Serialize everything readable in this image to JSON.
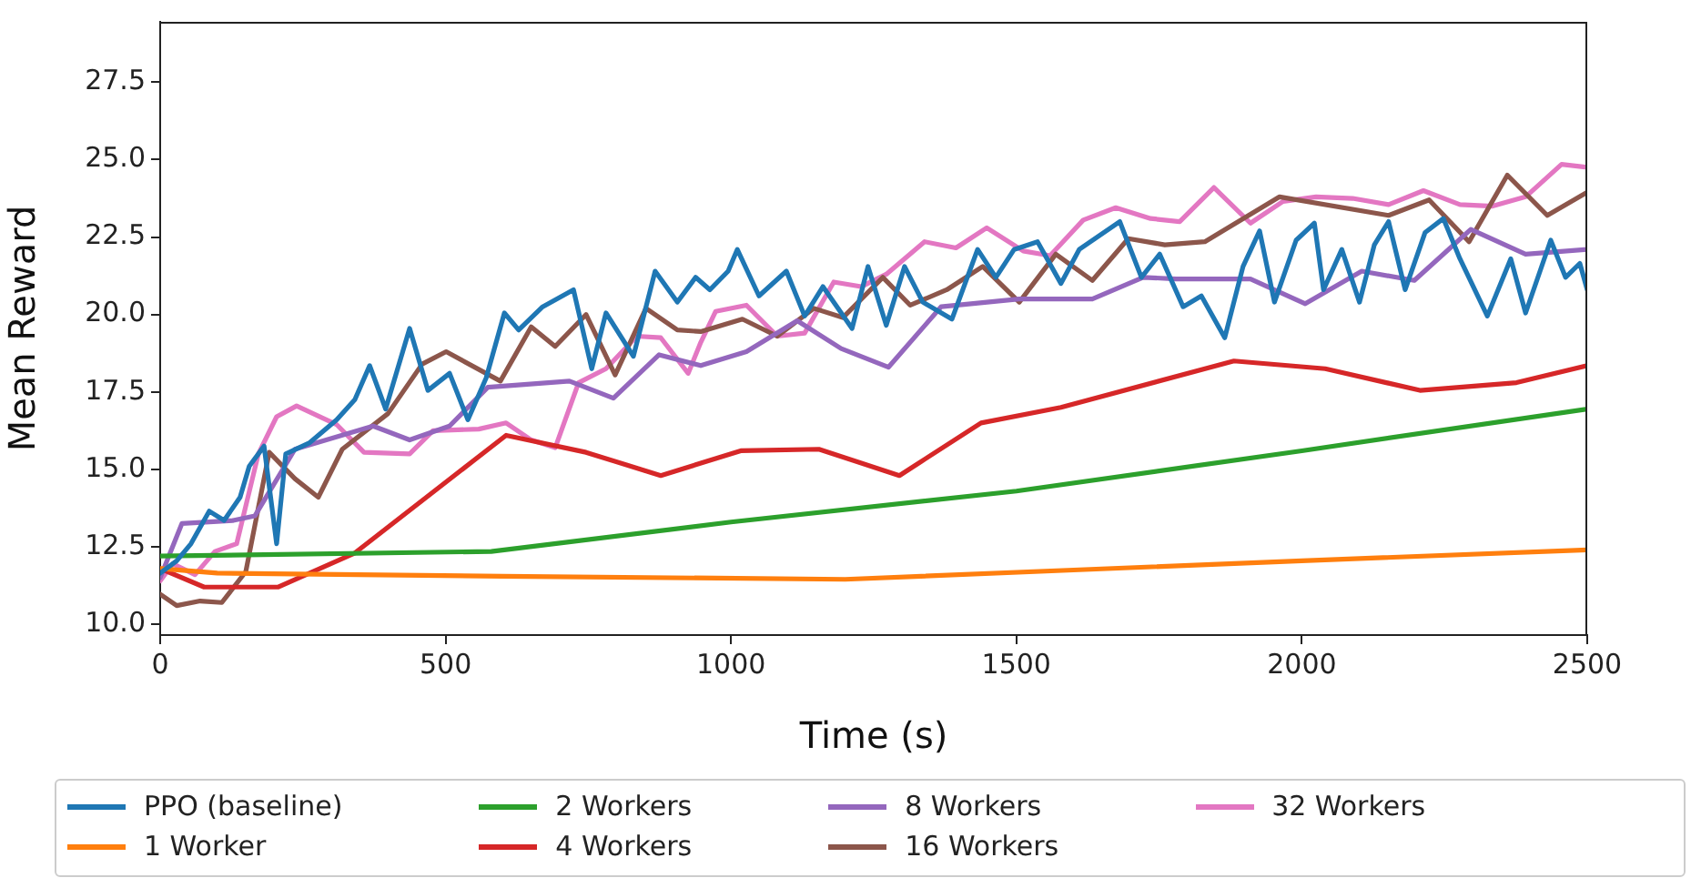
{
  "chart_data": {
    "type": "line",
    "xlabel": "Time (s)",
    "ylabel": "Mean Reward",
    "xlim": [
      0,
      2500
    ],
    "xticks": [
      0,
      500,
      1000,
      1500,
      2000,
      2500
    ],
    "ylim": [
      9.65,
      29.45
    ],
    "yticks": [
      {
        "value": 10,
        "label": "10.0"
      },
      {
        "value": 12.5,
        "label": "12.5"
      },
      {
        "value": 15,
        "label": "15.0"
      },
      {
        "value": 17.5,
        "label": "17.5"
      },
      {
        "value": 20,
        "label": "20.0"
      },
      {
        "value": 22.5,
        "label": "22.5"
      },
      {
        "value": 25,
        "label": "25.0"
      },
      {
        "value": 27.5,
        "label": "27.5"
      }
    ],
    "grid": false,
    "legend": "bottom",
    "marker": "none",
    "line_style": "solid",
    "series": [
      {
        "name": "PPO (baseline)",
        "color": "#1f77b4",
        "x": [
          0,
          29,
          54,
          86,
          112,
          140,
          156,
          182,
          204,
          220,
          261,
          309,
          341,
          367,
          395,
          437,
          469,
          507,
          539,
          571,
          603,
          628,
          670,
          724,
          756,
          781,
          829,
          867,
          906,
          938,
          963,
          995,
          1011,
          1049,
          1097,
          1129,
          1161,
          1212,
          1240,
          1272,
          1304,
          1336,
          1387,
          1432,
          1464,
          1496,
          1537,
          1578,
          1610,
          1681,
          1719,
          1751,
          1792,
          1824,
          1865,
          1897,
          1926,
          1952,
          1990,
          2022,
          2038,
          2070,
          2101,
          2127,
          2152,
          2181,
          2216,
          2248,
          2277,
          2325,
          2366,
          2392,
          2436,
          2462,
          2487,
          2500
        ],
        "values": [
          11.65,
          12.05,
          12.6,
          13.65,
          13.35,
          14.1,
          15.1,
          15.75,
          12.6,
          15.5,
          15.85,
          16.6,
          17.25,
          18.35,
          16.95,
          19.55,
          17.55,
          18.1,
          16.6,
          17.95,
          20.05,
          19.5,
          20.25,
          20.8,
          18.25,
          20.05,
          18.65,
          21.4,
          20.4,
          21.2,
          20.8,
          21.4,
          22.1,
          20.6,
          21.4,
          19.95,
          20.9,
          19.55,
          21.55,
          19.65,
          21.55,
          20.4,
          19.85,
          22.1,
          21.2,
          22.1,
          22.35,
          21.0,
          22.1,
          23.0,
          21.2,
          21.95,
          20.25,
          20.6,
          19.25,
          21.55,
          22.7,
          20.4,
          22.4,
          22.95,
          20.8,
          22.1,
          20.4,
          22.25,
          23.0,
          20.8,
          22.65,
          23.1,
          21.8,
          19.95,
          21.8,
          20.05,
          22.4,
          21.2,
          21.65,
          20.8
        ]
      },
      {
        "name": "1 Worker",
        "color": "#ff7f0e",
        "x": [
          0,
          100,
          600,
          1200,
          1600,
          2000,
          2500
        ],
        "values": [
          11.8,
          11.65,
          11.55,
          11.45,
          11.75,
          12.05,
          12.4
        ]
      },
      {
        "name": "2 Workers",
        "color": "#2ca02c",
        "x": [
          0,
          580,
          1000,
          1500,
          2000,
          2500
        ],
        "values": [
          12.2,
          12.35,
          13.3,
          14.3,
          15.6,
          16.95
        ]
      },
      {
        "name": "4 Workers",
        "color": "#d62728",
        "x": [
          0,
          77,
          207,
          341,
          606,
          746,
          877,
          1017,
          1154,
          1295,
          1438,
          1578,
          1881,
          2041,
          2207,
          2376,
          2500
        ],
        "values": [
          11.8,
          11.2,
          11.2,
          12.3,
          16.1,
          15.55,
          14.8,
          15.6,
          15.65,
          14.8,
          16.5,
          17.0,
          18.5,
          18.25,
          17.55,
          17.8,
          18.35
        ]
      },
      {
        "name": "8 Workers",
        "color": "#9467bd",
        "x": [
          0,
          38,
          128,
          166,
          236,
          373,
          437,
          507,
          574,
          717,
          794,
          874,
          947,
          1027,
          1116,
          1193,
          1276,
          1368,
          1505,
          1633,
          1722,
          1780,
          1910,
          2006,
          2105,
          2197,
          2296,
          2392,
          2500
        ],
        "values": [
          11.5,
          13.25,
          13.35,
          13.5,
          15.65,
          16.4,
          15.95,
          16.4,
          17.65,
          17.85,
          17.3,
          18.7,
          18.35,
          18.8,
          19.8,
          18.9,
          18.3,
          20.25,
          20.5,
          20.5,
          21.2,
          21.15,
          21.15,
          20.35,
          21.4,
          21.1,
          22.75,
          21.95,
          22.1
        ]
      },
      {
        "name": "16 Workers",
        "color": "#8c564b",
        "x": [
          0,
          29,
          70,
          108,
          150,
          191,
          236,
          277,
          319,
          399,
          459,
          501,
          596,
          650,
          692,
          746,
          797,
          851,
          906,
          947,
          1020,
          1081,
          1145,
          1196,
          1266,
          1314,
          1378,
          1441,
          1505,
          1569,
          1633,
          1696,
          1760,
          1830,
          1961,
          2152,
          2223,
          2293,
          2360,
          2430,
          2500
        ],
        "values": [
          10.97,
          10.6,
          10.75,
          10.7,
          11.7,
          15.55,
          14.7,
          14.1,
          15.65,
          16.8,
          18.4,
          18.8,
          17.85,
          19.6,
          18.97,
          20.0,
          18.05,
          20.2,
          19.5,
          19.45,
          19.85,
          19.3,
          20.2,
          19.9,
          21.2,
          20.3,
          20.8,
          21.55,
          20.4,
          21.95,
          21.1,
          22.45,
          22.25,
          22.35,
          23.8,
          23.2,
          23.7,
          22.35,
          24.5,
          23.2,
          23.95
        ]
      },
      {
        "name": "32 Workers",
        "color": "#e377c2",
        "x": [
          0,
          22,
          61,
          96,
          134,
          172,
          204,
          239,
          309,
          357,
          437,
          478,
          558,
          606,
          650,
          692,
          733,
          781,
          835,
          877,
          925,
          947,
          973,
          1027,
          1081,
          1129,
          1180,
          1228,
          1272,
          1339,
          1394,
          1448,
          1512,
          1559,
          1617,
          1674,
          1735,
          1786,
          1846,
          1910,
          1967,
          2025,
          2089,
          2152,
          2213,
          2277,
          2334,
          2392,
          2455,
          2500
        ],
        "values": [
          11.4,
          11.95,
          11.6,
          12.35,
          12.6,
          15.5,
          16.7,
          17.05,
          16.45,
          15.55,
          15.5,
          16.25,
          16.3,
          16.5,
          15.95,
          15.7,
          17.8,
          18.25,
          19.3,
          19.25,
          18.1,
          19.1,
          20.1,
          20.3,
          19.3,
          19.4,
          21.05,
          20.9,
          21.3,
          22.35,
          22.15,
          22.8,
          22.05,
          21.9,
          23.05,
          23.45,
          23.1,
          23.0,
          24.1,
          22.95,
          23.65,
          23.8,
          23.75,
          23.55,
          24.0,
          23.55,
          23.5,
          23.8,
          24.85,
          24.75
        ]
      }
    ]
  }
}
